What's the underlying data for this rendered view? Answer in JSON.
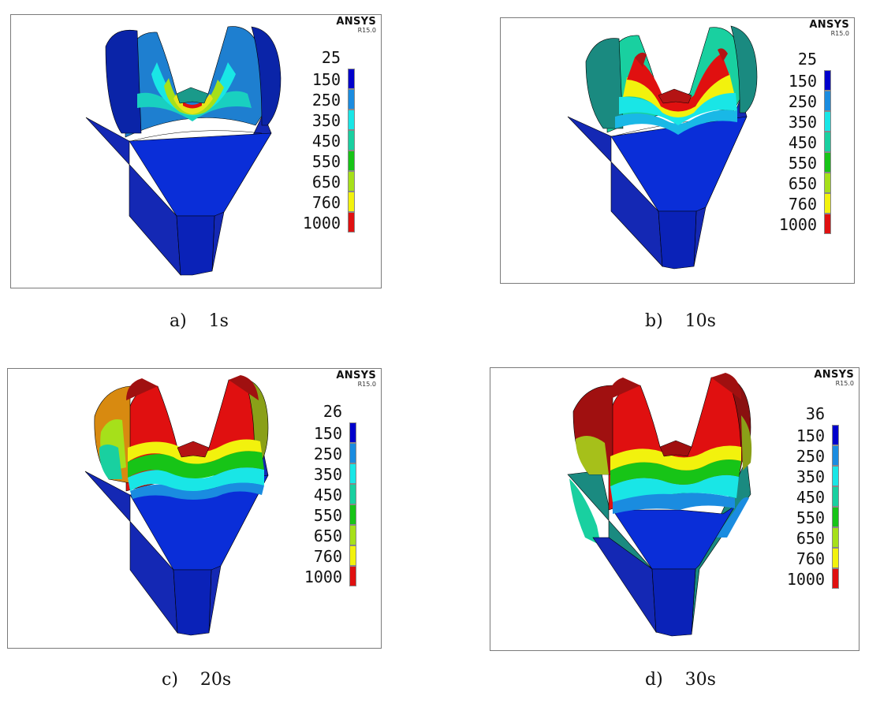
{
  "software": {
    "name": "ANSYS",
    "version": "R15.0"
  },
  "legend": {
    "levels": [
      "150",
      "250",
      "350",
      "450",
      "550",
      "650",
      "760",
      "1000"
    ],
    "colors": [
      "#0000cc",
      "#1a8ce0",
      "#19e6e6",
      "#19d0a0",
      "#17c417",
      "#a6e01a",
      "#f2f20d",
      "#e01010"
    ]
  },
  "panels": [
    {
      "id": "a",
      "legend_min": "25",
      "caption": "a)    1s"
    },
    {
      "id": "b",
      "legend_min": "25",
      "caption": "b)    10s"
    },
    {
      "id": "c",
      "legend_min": "26",
      "caption": "c)    20s"
    },
    {
      "id": "d",
      "legend_min": "36",
      "caption": "d)    30s"
    }
  ]
}
